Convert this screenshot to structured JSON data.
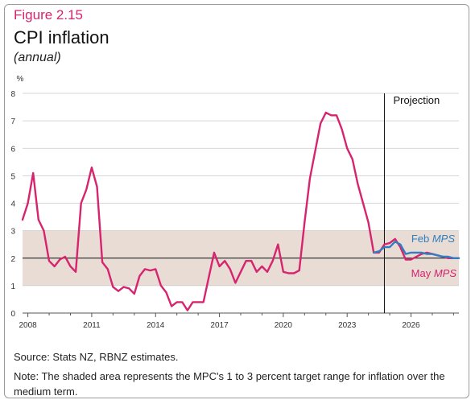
{
  "figure": {
    "label": "Figure 2.15",
    "title": "CPI inflation",
    "subtitle": "(annual)"
  },
  "footnotes": {
    "source": "Source: Stats NZ, RBNZ estimates.",
    "note": "Note: The shaded area represents the MPC's 1 to 3 percent target range for inflation over the medium term."
  },
  "chart_data": {
    "type": "line",
    "title": "CPI inflation",
    "subtitle": "(annual)",
    "ylabel": "%",
    "xlabel": "",
    "ylim": [
      0,
      8
    ],
    "xlim": [
      2007.75,
      2028.25
    ],
    "yticks": [
      0,
      1,
      2,
      3,
      4,
      5,
      6,
      7,
      8
    ],
    "xticks": [
      2008,
      2011,
      2014,
      2017,
      2020,
      2023,
      2026
    ],
    "grid": true,
    "target_band": {
      "low": 1,
      "high": 3,
      "color": "#e8dcd5"
    },
    "reference_line_y": 2,
    "projection_start": 2024.75,
    "projection_label": "Projection",
    "colors": {
      "may": "#d6246e",
      "feb": "#2f7fc1",
      "accent": "#d6246e"
    },
    "series": [
      {
        "name": "May MPS",
        "label_prefix": "May ",
        "label_italic": "MPS",
        "color": "#d6246e",
        "points": [
          [
            2007.75,
            3.4
          ],
          [
            2008.0,
            4.0
          ],
          [
            2008.25,
            5.1
          ],
          [
            2008.5,
            3.4
          ],
          [
            2008.75,
            3.0
          ],
          [
            2009.0,
            1.9
          ],
          [
            2009.25,
            1.7
          ],
          [
            2009.5,
            1.95
          ],
          [
            2009.75,
            2.05
          ],
          [
            2010.0,
            1.7
          ],
          [
            2010.25,
            1.5
          ],
          [
            2010.5,
            4.0
          ],
          [
            2010.75,
            4.5
          ],
          [
            2011.0,
            5.3
          ],
          [
            2011.25,
            4.6
          ],
          [
            2011.5,
            1.85
          ],
          [
            2011.75,
            1.6
          ],
          [
            2012.0,
            0.95
          ],
          [
            2012.25,
            0.8
          ],
          [
            2012.5,
            0.95
          ],
          [
            2012.75,
            0.9
          ],
          [
            2013.0,
            0.7
          ],
          [
            2013.25,
            1.35
          ],
          [
            2013.5,
            1.6
          ],
          [
            2013.75,
            1.55
          ],
          [
            2014.0,
            1.6
          ],
          [
            2014.25,
            1.0
          ],
          [
            2014.5,
            0.75
          ],
          [
            2014.75,
            0.25
          ],
          [
            2015.0,
            0.4
          ],
          [
            2015.25,
            0.4
          ],
          [
            2015.5,
            0.1
          ],
          [
            2015.75,
            0.4
          ],
          [
            2016.0,
            0.4
          ],
          [
            2016.25,
            0.4
          ],
          [
            2016.5,
            1.3
          ],
          [
            2016.75,
            2.2
          ],
          [
            2017.0,
            1.7
          ],
          [
            2017.25,
            1.9
          ],
          [
            2017.5,
            1.6
          ],
          [
            2017.75,
            1.1
          ],
          [
            2018.0,
            1.5
          ],
          [
            2018.25,
            1.9
          ],
          [
            2018.5,
            1.9
          ],
          [
            2018.75,
            1.5
          ],
          [
            2019.0,
            1.7
          ],
          [
            2019.25,
            1.5
          ],
          [
            2019.5,
            1.9
          ],
          [
            2019.75,
            2.5
          ],
          [
            2020.0,
            1.5
          ],
          [
            2020.25,
            1.45
          ],
          [
            2020.5,
            1.45
          ],
          [
            2020.75,
            1.55
          ],
          [
            2021.0,
            3.3
          ],
          [
            2021.25,
            4.9
          ],
          [
            2021.5,
            5.9
          ],
          [
            2021.75,
            6.9
          ],
          [
            2022.0,
            7.3
          ],
          [
            2022.25,
            7.2
          ],
          [
            2022.5,
            7.2
          ],
          [
            2022.75,
            6.7
          ],
          [
            2023.0,
            6.0
          ],
          [
            2023.25,
            5.6
          ],
          [
            2023.5,
            4.7
          ],
          [
            2023.75,
            4.0
          ],
          [
            2024.0,
            3.3
          ],
          [
            2024.25,
            2.2
          ],
          [
            2024.5,
            2.2
          ],
          [
            2024.75,
            2.5
          ],
          [
            2025.0,
            2.55
          ],
          [
            2025.25,
            2.7
          ],
          [
            2025.5,
            2.4
          ],
          [
            2025.75,
            1.95
          ],
          [
            2026.0,
            1.95
          ],
          [
            2026.25,
            2.05
          ],
          [
            2026.5,
            2.15
          ],
          [
            2026.75,
            2.2
          ],
          [
            2027.0,
            2.15
          ],
          [
            2027.25,
            2.1
          ],
          [
            2027.5,
            2.05
          ],
          [
            2027.75,
            2.0
          ],
          [
            2028.0,
            2.0
          ],
          [
            2028.25,
            2.0
          ]
        ]
      },
      {
        "name": "Feb MPS",
        "label_prefix": "Feb ",
        "label_italic": "MPS",
        "color": "#2f7fc1",
        "points": [
          [
            2024.25,
            2.2
          ],
          [
            2024.5,
            2.25
          ],
          [
            2024.75,
            2.4
          ],
          [
            2025.0,
            2.4
          ],
          [
            2025.25,
            2.6
          ],
          [
            2025.5,
            2.5
          ],
          [
            2025.75,
            2.15
          ],
          [
            2026.0,
            2.2
          ],
          [
            2026.25,
            2.2
          ],
          [
            2026.5,
            2.2
          ],
          [
            2026.75,
            2.15
          ],
          [
            2027.0,
            2.15
          ],
          [
            2027.25,
            2.1
          ],
          [
            2027.5,
            2.05
          ],
          [
            2027.75,
            2.05
          ],
          [
            2028.0,
            2.0
          ],
          [
            2028.25,
            2.0
          ]
        ]
      }
    ]
  }
}
